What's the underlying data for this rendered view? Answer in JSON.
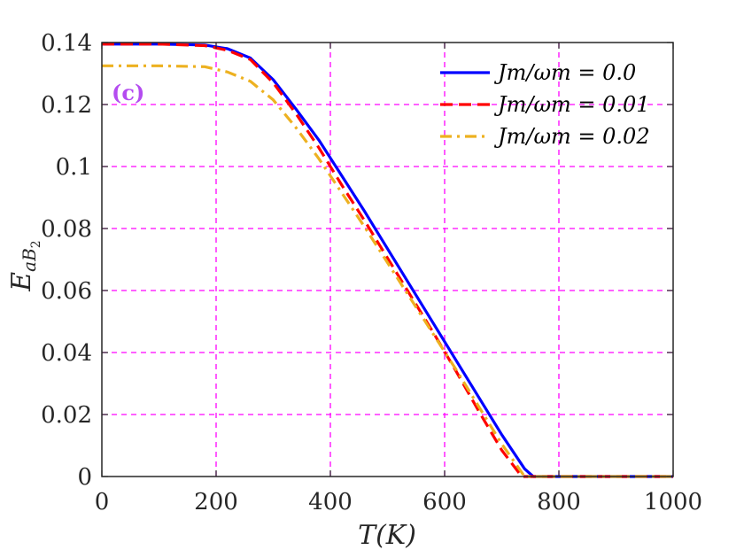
{
  "chart_data": {
    "type": "line",
    "panel_label": "(c)",
    "xlabel": "T(K)",
    "ylabel": "E_{aB_2}",
    "ylabel_main": "E",
    "ylabel_sub1": "aB",
    "ylabel_sub2": "2",
    "xlim": [
      0,
      1000
    ],
    "ylim": [
      0,
      0.14
    ],
    "xticks": [
      0,
      200,
      400,
      600,
      800,
      1000
    ],
    "xtick_labels": [
      "0",
      "200",
      "400",
      "600",
      "800",
      "1000"
    ],
    "yticks": [
      0,
      0.02,
      0.04,
      0.06,
      0.08,
      0.1,
      0.12,
      0.14
    ],
    "ytick_labels": [
      "0",
      "0.02",
      "0.04",
      "0.06",
      "0.08",
      "0.1",
      "0.12",
      "0.14"
    ],
    "grid": true,
    "legend_position": "top-right",
    "series": [
      {
        "name": "J_m/ω_m = 0.0",
        "label": "Jm/ωm = 0.0",
        "color": "#0000ff",
        "dash": "solid",
        "x": [
          0,
          100,
          180,
          220,
          260,
          300,
          340,
          380,
          420,
          460,
          500,
          540,
          580,
          620,
          660,
          700,
          740,
          755,
          800,
          900,
          1000
        ],
        "y": [
          0.1395,
          0.1395,
          0.1392,
          0.138,
          0.135,
          0.128,
          0.1185,
          0.1085,
          0.097,
          0.0855,
          0.0735,
          0.0615,
          0.0495,
          0.0375,
          0.0255,
          0.0135,
          0.0025,
          0.0,
          0.0,
          0.0,
          0.0
        ]
      },
      {
        "name": "J_m/ω_m = 0.01",
        "label": "Jm/ωm = 0.01",
        "color": "#ff0000",
        "dash": "dashed",
        "x": [
          0,
          100,
          180,
          220,
          260,
          300,
          340,
          380,
          420,
          460,
          500,
          540,
          580,
          620,
          660,
          700,
          735,
          800,
          900,
          1000
        ],
        "y": [
          0.1395,
          0.1395,
          0.139,
          0.1375,
          0.1345,
          0.127,
          0.117,
          0.106,
          0.094,
          0.0825,
          0.0705,
          0.0585,
          0.0465,
          0.034,
          0.021,
          0.0085,
          0.0,
          0.0,
          0.0,
          0.0
        ]
      },
      {
        "name": "J_m/ω_m = 0.02",
        "label": "Jm/ωm = 0.02",
        "color": "#edb120",
        "dash": "dashdot",
        "x": [
          0,
          100,
          180,
          220,
          260,
          300,
          340,
          380,
          420,
          460,
          500,
          540,
          580,
          620,
          660,
          700,
          740,
          800,
          900,
          1000
        ],
        "y": [
          0.1325,
          0.1325,
          0.1322,
          0.1305,
          0.1275,
          0.1215,
          0.1125,
          0.1025,
          0.0915,
          0.0805,
          0.069,
          0.0575,
          0.046,
          0.0345,
          0.0225,
          0.0105,
          0.0,
          0.0,
          0.0,
          0.0
        ]
      }
    ]
  }
}
